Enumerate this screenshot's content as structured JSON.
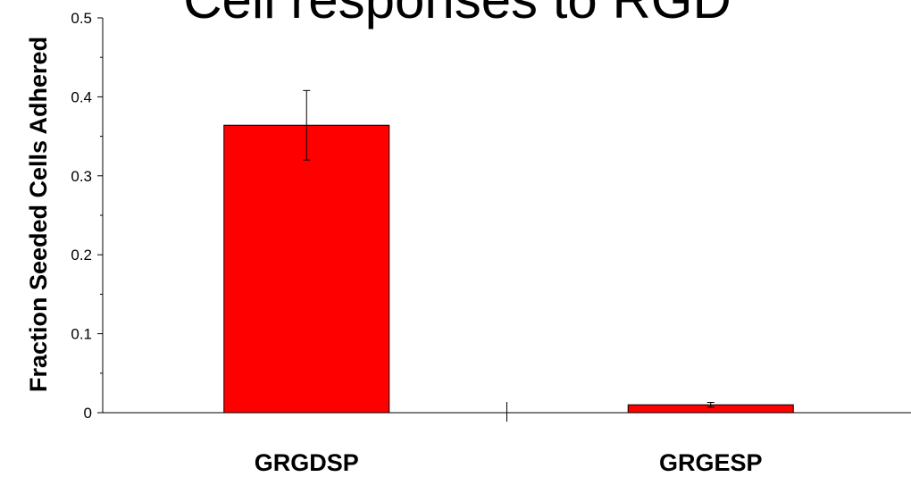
{
  "chart_data": {
    "type": "bar",
    "title": "Cell responses to RGD",
    "xlabel": "",
    "ylabel": "Fraction Seeded Cells Adhered",
    "categories": [
      "GRGDSP",
      "GRGESP"
    ],
    "values": [
      0.364,
      0.01
    ],
    "errors": [
      0.044,
      0.003
    ],
    "ylim": [
      0,
      0.5
    ],
    "yticks": [
      0,
      0.1,
      0.2,
      0.3,
      0.4,
      0.5
    ],
    "ytick_labels": [
      "0",
      "0.1",
      "0.2",
      "0.3",
      "0.4",
      "0.5"
    ],
    "bar_color": "#ff0000",
    "grid": false,
    "legend": "none"
  }
}
